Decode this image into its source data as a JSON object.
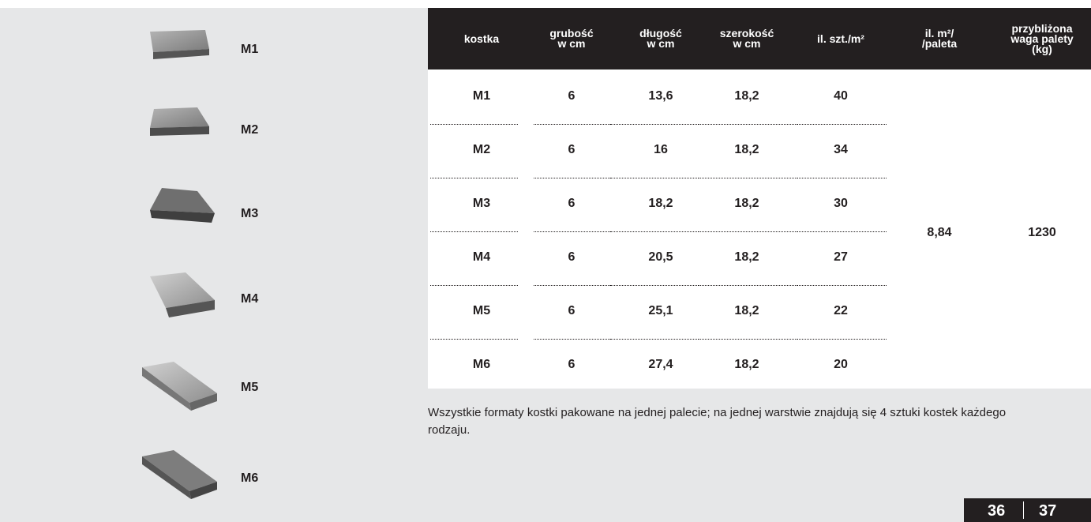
{
  "products": [
    "M1",
    "M2",
    "M3",
    "M4",
    "M5",
    "M6"
  ],
  "table": {
    "header": [
      [
        "kostka"
      ],
      [
        "grubość",
        "w cm"
      ],
      [
        "długość",
        "w cm"
      ],
      [
        "szerokość",
        "w cm"
      ],
      [
        "il. szt./m²"
      ],
      [
        "il. m²/",
        "/paleta"
      ],
      [
        "przybliżona",
        "waga palety",
        "(kg)"
      ]
    ],
    "rows": [
      [
        "M1",
        "6",
        "13,6",
        "18,2",
        "40"
      ],
      [
        "M2",
        "6",
        "16",
        "18,2",
        "34"
      ],
      [
        "M3",
        "6",
        "18,2",
        "18,2",
        "30"
      ],
      [
        "M4",
        "6",
        "20,5",
        "18,2",
        "27"
      ],
      [
        "M5",
        "6",
        "25,1",
        "18,2",
        "22"
      ],
      [
        "M6",
        "6",
        "27,4",
        "18,2",
        "20"
      ]
    ],
    "pallet_area": "8,84",
    "pallet_weight": "1230"
  },
  "note": "Wszystkie formaty kostki pakowane na jednej palecie; na jednej warstwie znajdują się 4 sztuki kostek każdego rodzaju.",
  "pages": [
    "36",
    "37"
  ]
}
